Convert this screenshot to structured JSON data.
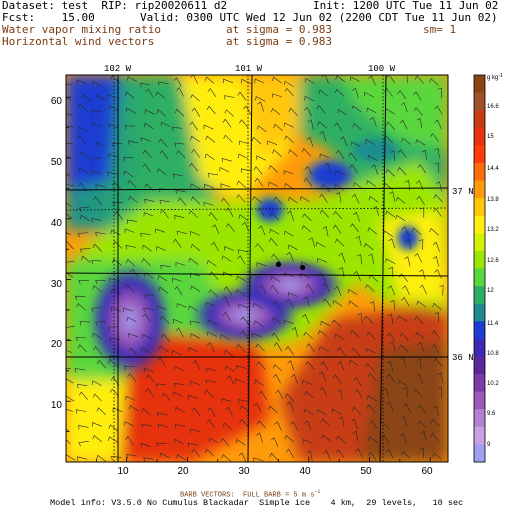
{
  "header": {
    "dataset": "Dataset: test  RIP: rip20020611 d2",
    "init": "Init: 1200 UTC Tue 11 Jun 02",
    "fcst": "Fcst:    15.00",
    "valid": "Valid: 0300 UTC Wed 12 Jun 02 (2200 CDT Tue 11 Jun 02)",
    "field1": "Water vapor mixing ratio",
    "field1_level": "at sigma = 0.983",
    "smoothing": "sm= 1",
    "field2": "Horizontal wind vectors",
    "field2_level": "at sigma = 0.983"
  },
  "map": {
    "lon_labels": [
      "102 W",
      "101 W",
      "100 W"
    ],
    "lat_labels": [
      "37 N",
      "36 N"
    ],
    "x_ticks": [
      "10",
      "20",
      "30",
      "40",
      "50",
      "60"
    ],
    "y_ticks": [
      "10",
      "20",
      "30",
      "40",
      "50",
      "60"
    ],
    "high_moisture_centers": [
      {
        "x": 13,
        "y": 22
      },
      {
        "x": 31,
        "y": 24
      },
      {
        "x": 38,
        "y": 30
      },
      {
        "x": 42,
        "y": 50
      },
      {
        "x": 27,
        "y": 44
      },
      {
        "x": 56,
        "y": 36
      }
    ],
    "station_markers": [
      {
        "x": 35,
        "y": 32.5
      },
      {
        "x": 39,
        "y": 32
      }
    ]
  },
  "colorbar": {
    "unit": "g kg",
    "unit_exp": "-1",
    "labels": [
      "16.6",
      "15",
      "14.4",
      "13.8",
      "13.2",
      "12.6",
      "12",
      "11.4",
      "10.8",
      "10.2",
      "9.6",
      "9"
    ],
    "colors": [
      "#8b4513",
      "#a0522d",
      "#c83c14",
      "#e6320f",
      "#ff3c0a",
      "#ff6e0a",
      "#ff9b0a",
      "#ffc80a",
      "#ffee0f",
      "#d2f00a",
      "#9be605",
      "#5ad73c",
      "#2daf64",
      "#1e8c91",
      "#1e3cd2",
      "#3c28b4",
      "#5a289b",
      "#7d3ca5",
      "#9b5ab9",
      "#b482d2",
      "#c8a0e6",
      "#a0a0f0"
    ]
  },
  "footer": {
    "barb_note": "BARB VECTORS:  FULL BARB = 5 m s",
    "barb_exp": "-1",
    "model_info": "Model info: V3.5.0 No Cumulus Blackadar  Simple ice    4 km,  29 levels,   10 sec"
  }
}
